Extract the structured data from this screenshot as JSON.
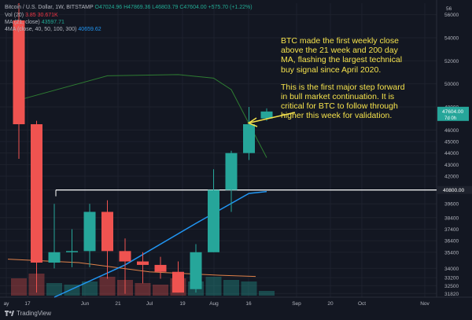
{
  "legend": {
    "symbol_line": "Bitcoin / U.S. Dollar, 1W, BITSTAMP",
    "ohlc": "O47024.96 H47869.36 L46803.79 C47604.00 +575.70 (+1.22%)",
    "vol_label": "Vol (20)",
    "vol_values": "3.85  30.671K",
    "ma_label": "MA (21, close)",
    "ma_value": "43597.71",
    "ma4_label": "4MA (close, 40, 50, 100, 300)",
    "ma4_value": "40659.62"
  },
  "annotation": {
    "paragraph1": "BTC made the first weekly close above the 21 week and 200 day MA, flashing the largest technical buy signal since April 2020.",
    "paragraph2": "This is the first major step forward in bull market continuation. It is critical for BTC to follow through higher this week for validation."
  },
  "price_badge": {
    "price": "47604.00",
    "countdown": "7d 0h"
  },
  "resistance_label": "40800.00",
  "colors": {
    "up": "#26a69a",
    "down": "#ef5350",
    "ma21": "#2e7d32",
    "ma4": "#2196f3",
    "ma_orange": "#e0824a",
    "resistance": "#ffffff",
    "annotation": "#f5e24c",
    "background": "#131722",
    "grid": "#1e222d"
  },
  "branding": {
    "name": "TradingView",
    "icon": "tradingview-logo-icon"
  },
  "chart_data": {
    "type": "candlestick",
    "title": "Bitcoin / U.S. Dollar, 1W, BITSTAMP",
    "y_ticks": [
      56000,
      54000,
      52000,
      50000,
      48000,
      46000,
      45000,
      44000,
      43000,
      42000,
      40800,
      39600,
      38400,
      37400,
      36400,
      35400,
      34000,
      33200,
      32500,
      31820
    ],
    "x_ticks": [
      "ay",
      "17",
      "Jun",
      "21",
      "Jul",
      "19",
      "Aug",
      "16",
      "Sep",
      "20",
      "Oct",
      "Nov"
    ],
    "ylim": [
      31500,
      57000
    ],
    "candles": [
      {
        "o": 55500,
        "h": 57000,
        "l": 43500,
        "c": 46500
      },
      {
        "o": 46500,
        "h": 46800,
        "l": 31900,
        "c": 34500
      },
      {
        "o": 34500,
        "h": 39600,
        "l": 34000,
        "c": 35400
      },
      {
        "o": 35400,
        "h": 37400,
        "l": 34100,
        "c": 35500
      },
      {
        "o": 35500,
        "h": 39600,
        "l": 34100,
        "c": 38900
      },
      {
        "o": 38900,
        "h": 39900,
        "l": 33100,
        "c": 35500
      },
      {
        "o": 35500,
        "h": 36600,
        "l": 31800,
        "c": 34600
      },
      {
        "o": 34600,
        "h": 35400,
        "l": 32700,
        "c": 34300
      },
      {
        "o": 34300,
        "h": 35000,
        "l": 33100,
        "c": 33700
      },
      {
        "o": 33700,
        "h": 34600,
        "l": 31900,
        "c": 31900
      },
      {
        "o": 32200,
        "h": 36100,
        "l": 31900,
        "c": 35400
      },
      {
        "o": 35400,
        "h": 42600,
        "l": 35400,
        "c": 40800
      },
      {
        "o": 40800,
        "h": 44200,
        "l": 38900,
        "c": 44000
      },
      {
        "o": 44000,
        "h": 48000,
        "l": 43400,
        "c": 46500
      },
      {
        "o": 47000,
        "h": 47870,
        "l": 46800,
        "c": 47604
      }
    ],
    "series": [
      {
        "name": "MA (21, close)",
        "type": "line",
        "points": [
          [
            0,
            48600
          ],
          [
            5,
            50700
          ],
          [
            9,
            50800
          ],
          [
            11,
            50500
          ],
          [
            12,
            49500
          ],
          [
            14,
            43600
          ]
        ]
      },
      {
        "name": "4MA (close, 40, 50, 100, 300)",
        "type": "line",
        "points": [
          [
            2,
            31500
          ],
          [
            6,
            34300
          ],
          [
            10,
            37900
          ],
          [
            13,
            40500
          ],
          [
            14,
            40660
          ]
        ]
      }
    ],
    "orange_line": [
      [
        0,
        34800
      ],
      [
        4,
        34500
      ],
      [
        8,
        33700
      ],
      [
        12,
        33400
      ],
      [
        14,
        33300
      ]
    ],
    "volume": [
      0.55,
      0.7,
      0.4,
      0.35,
      0.45,
      0.6,
      0.5,
      0.4,
      0.35,
      0.55,
      0.45,
      0.6,
      0.5,
      0.45,
      0.15
    ],
    "resistance": 40800,
    "last_price": 47604
  }
}
